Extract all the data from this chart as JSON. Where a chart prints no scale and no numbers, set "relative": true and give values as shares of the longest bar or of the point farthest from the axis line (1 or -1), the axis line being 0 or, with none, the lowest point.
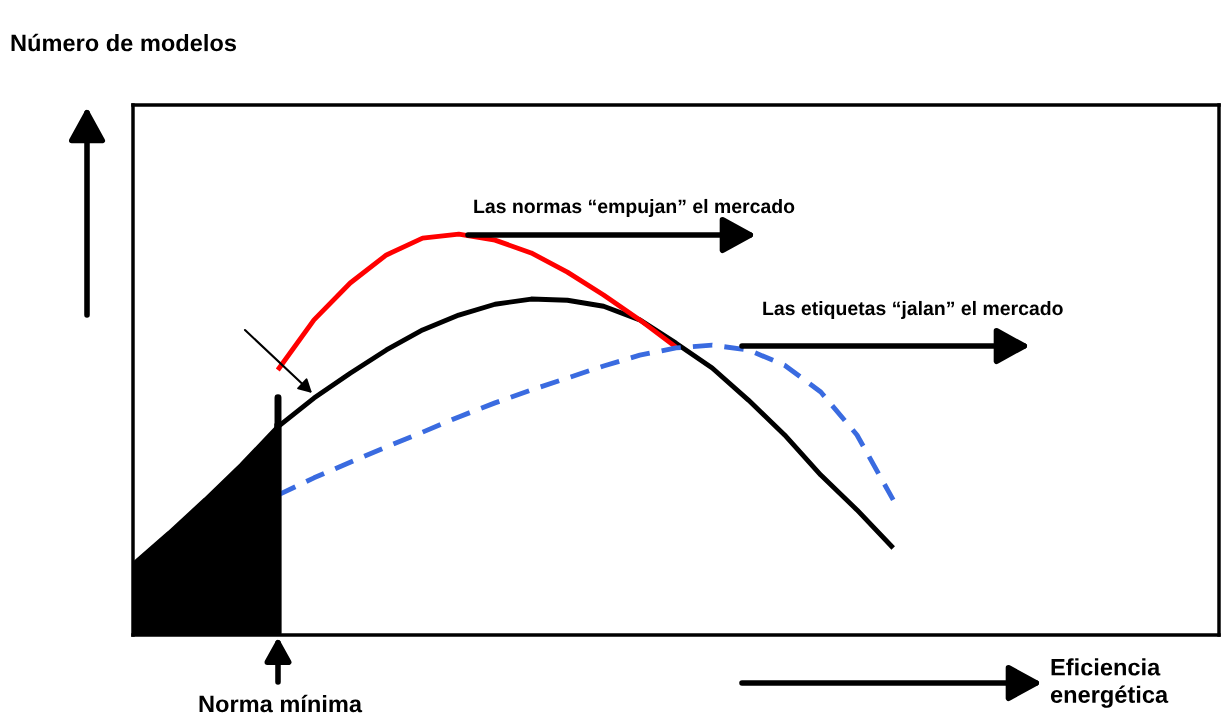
{
  "chart_data": {
    "type": "line",
    "relative": true,
    "xlabel": "Eficiencia energética",
    "categories": [
      null,
      null,
      null,
      null,
      null,
      null,
      null,
      null,
      null,
      null,
      null,
      null,
      null,
      null,
      null,
      null,
      null,
      null,
      null,
      null,
      null,
      null,
      null,
      null,
      null,
      null,
      null,
      null,
      null,
      null,
      null
    ],
    "series": [
      {
        "type": "area",
        "color": "#000000",
        "values": [
          0.175,
          0.254,
          0.337,
          0.424,
          0.519,
          null,
          null,
          null,
          null,
          null,
          null,
          null,
          null,
          null,
          null,
          null,
          null,
          null,
          null,
          null,
          null,
          null,
          null,
          null,
          null,
          null,
          null,
          null,
          null,
          null,
          null
        ]
      },
      {
        "color": "#000000",
        "line_style": "solid",
        "values": [
          0.175,
          0.254,
          0.337,
          0.424,
          0.519,
          0.591,
          0.653,
          0.711,
          0.761,
          0.798,
          0.825,
          0.838,
          0.835,
          0.82,
          0.786,
          0.728,
          0.666,
          0.586,
          0.499,
          0.399,
          0.312,
          0.217,
          null,
          null,
          null,
          null,
          null,
          null,
          null,
          null,
          null
        ]
      },
      {
        "color": "#ff0000",
        "line_style": "solid",
        "values": [
          null,
          null,
          null,
          null,
          0.661,
          0.786,
          0.878,
          0.948,
          0.99,
          1.0,
          0.985,
          0.953,
          0.905,
          0.848,
          0.786,
          0.718,
          null,
          null,
          null,
          null,
          null,
          null,
          null,
          null,
          null,
          null,
          null,
          null,
          null,
          null,
          null
        ]
      },
      {
        "color": "#3a6be0",
        "line_style": "dashed",
        "values": [
          null,
          null,
          null,
          null,
          0.349,
          0.392,
          0.431,
          0.469,
          0.506,
          0.544,
          0.579,
          0.611,
          0.641,
          0.671,
          0.698,
          0.716,
          0.723,
          0.711,
          0.673,
          0.606,
          0.499,
          0.337,
          null,
          null,
          null,
          null,
          null,
          null,
          null,
          null,
          null
        ]
      }
    ],
    "annotations": [
      "Las normas “empujan” el mercado",
      "Las etiquetas “jalan” el mercado",
      "Norma mínima",
      "Número de modelos"
    ]
  }
}
